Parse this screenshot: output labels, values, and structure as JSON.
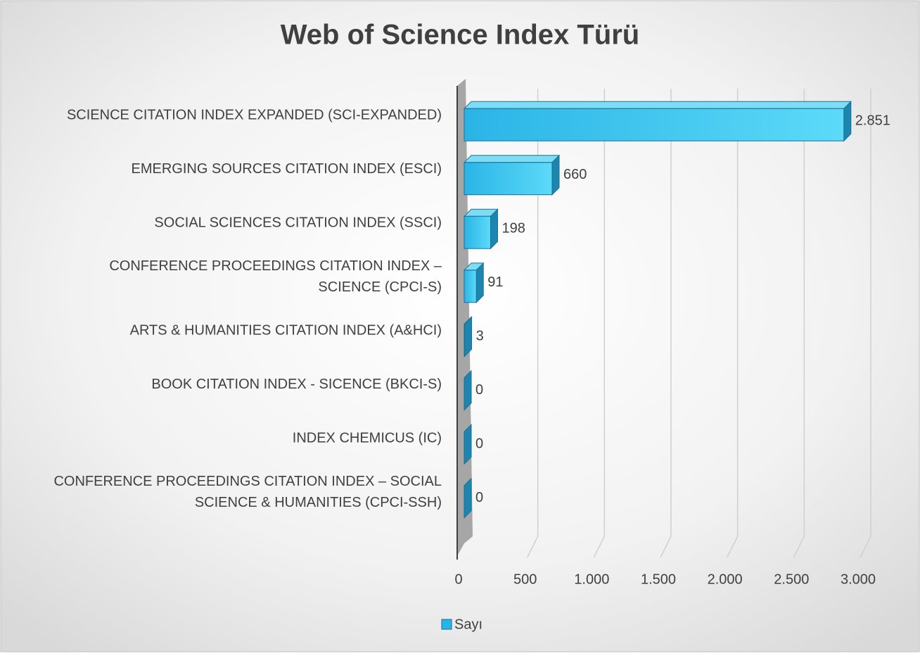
{
  "chart_data": {
    "type": "bar3d-horizontal",
    "title": "Web of Science Index Türü",
    "categories": [
      "SCIENCE CITATION INDEX EXPANDED (SCI-EXPANDED)",
      "EMERGING SOURCES CITATION INDEX (ESCI)",
      "SOCIAL SCIENCES CITATION INDEX (SSCI)",
      "CONFERENCE PROCEEDINGS CITATION INDEX –\nSCIENCE (CPCI-S)",
      "ARTS & HUMANITIES CITATION INDEX (A&HCI)",
      "BOOK CITATION INDEX - SICENCE (BKCI-S)",
      "INDEX CHEMICUS (IC)",
      "CONFERENCE PROCEEDINGS CITATION INDEX – SOCIAL\nSCIENCE & HUMANITIES (CPCI-SSH)"
    ],
    "series": [
      {
        "name": "Sayı",
        "color": "#2ab4e6",
        "values": [
          2851,
          660,
          198,
          91,
          3,
          0,
          0,
          0
        ],
        "value_labels": [
          "2.851",
          "660",
          "198",
          "91",
          "3",
          "0",
          "0",
          "0"
        ]
      }
    ],
    "xlim": [
      0,
      3000
    ],
    "xticks": [
      0,
      500,
      {
        "value": 1000,
        "label": "1.000"
      },
      {
        "value": 1500,
        "label": "1.500"
      },
      {
        "value": 2000,
        "label": "2.000"
      },
      {
        "value": 2500,
        "label": "2.500"
      },
      {
        "value": 3000,
        "label": "3.000"
      }
    ],
    "grid": true,
    "legend": "bottom"
  }
}
